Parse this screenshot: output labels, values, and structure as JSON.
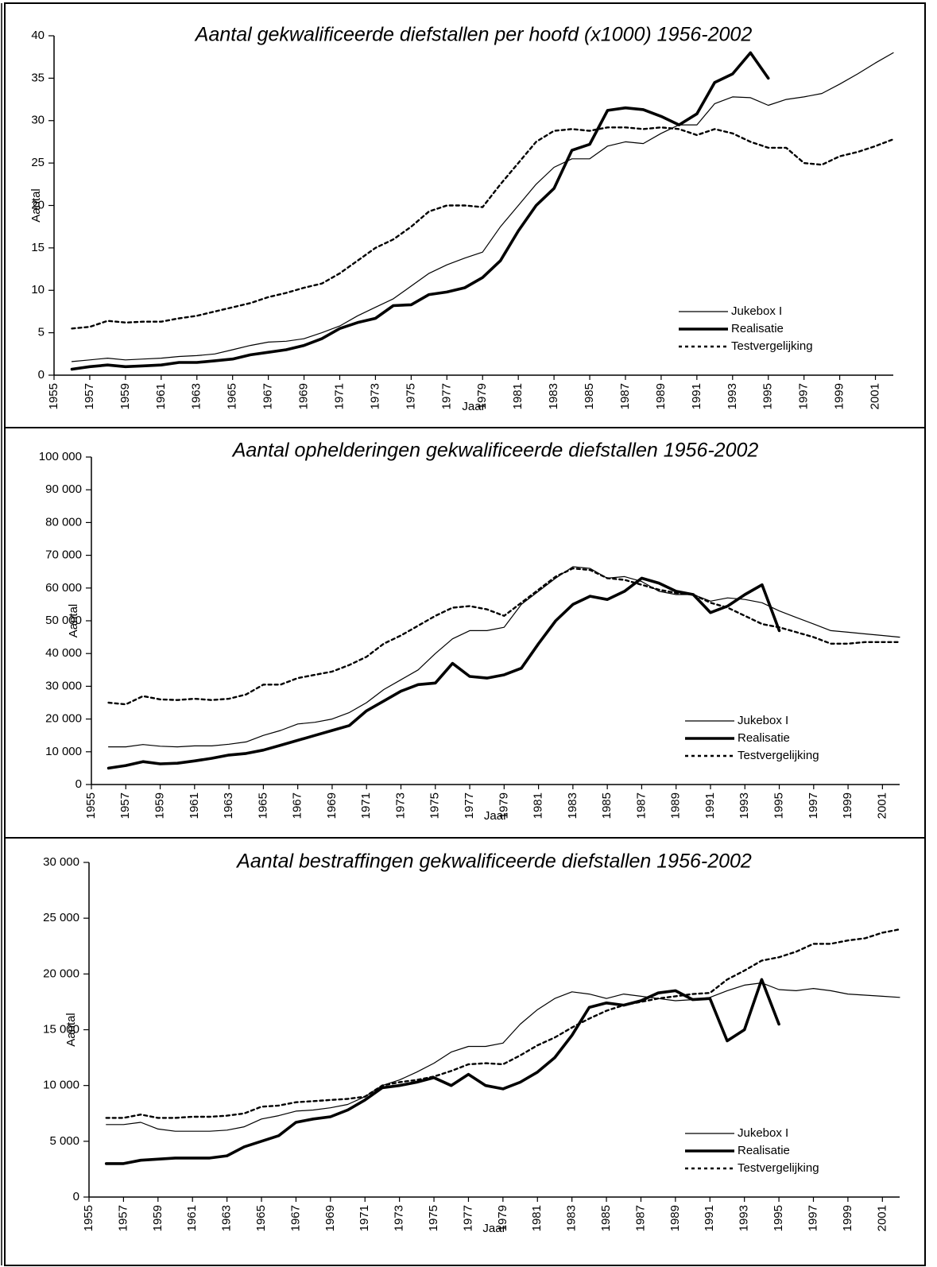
{
  "chart_data": [
    {
      "type": "line",
      "title": "Aantal gekwalificeerde diefstallen per hoofd (x1000) 1956-2002",
      "xlabel": "Jaar",
      "ylabel": "Aantal",
      "x": [
        1956,
        1957,
        1958,
        1959,
        1960,
        1961,
        1962,
        1963,
        1964,
        1965,
        1966,
        1967,
        1968,
        1969,
        1970,
        1971,
        1972,
        1973,
        1974,
        1975,
        1976,
        1977,
        1978,
        1979,
        1980,
        1981,
        1982,
        1983,
        1984,
        1985,
        1986,
        1987,
        1988,
        1989,
        1990,
        1991,
        1992,
        1993,
        1994,
        1995,
        1996,
        1997,
        1998,
        1999,
        2000,
        2001,
        2002
      ],
      "xlim": [
        1955,
        2002
      ],
      "xticks": [
        1955,
        1957,
        1959,
        1961,
        1963,
        1965,
        1967,
        1969,
        1971,
        1973,
        1975,
        1977,
        1979,
        1981,
        1983,
        1985,
        1987,
        1989,
        1991,
        1993,
        1995,
        1997,
        1999,
        2001
      ],
      "ylim": [
        0,
        40
      ],
      "yticks": [
        0,
        5,
        10,
        15,
        20,
        25,
        30,
        35,
        40
      ],
      "legend": "lower right",
      "series": [
        {
          "name": "Jukebox I",
          "color": "#000000",
          "linestyle": "thin",
          "values": [
            1.6,
            1.8,
            2.0,
            1.8,
            1.9,
            2.0,
            2.2,
            2.3,
            2.5,
            3.0,
            3.5,
            3.9,
            4.0,
            4.3,
            5.0,
            5.8,
            7.0,
            8.0,
            9.0,
            10.5,
            12.0,
            13.0,
            13.8,
            14.5,
            17.5,
            20.0,
            22.5,
            24.5,
            25.5,
            25.5,
            27.0,
            27.5,
            27.3,
            28.5,
            29.5,
            29.5,
            32.0,
            32.8,
            32.7,
            31.8,
            32.5,
            32.8,
            33.2,
            34.3,
            35.5,
            36.8,
            38.0
          ]
        },
        {
          "name": "Realisatie",
          "color": "#000000",
          "linestyle": "thick",
          "values": [
            0.7,
            1.0,
            1.2,
            1.0,
            1.1,
            1.2,
            1.5,
            1.5,
            1.7,
            1.9,
            2.4,
            2.7,
            3.0,
            3.5,
            4.3,
            5.5,
            6.2,
            6.7,
            8.2,
            8.3,
            9.5,
            9.8,
            10.3,
            11.5,
            13.5,
            17.0,
            20.0,
            22.0,
            26.5,
            27.2,
            31.2,
            31.5,
            31.3,
            30.5,
            29.5,
            30.8,
            34.5,
            35.5,
            38.0,
            35.0,
            null,
            null,
            null,
            null,
            null,
            null,
            null
          ]
        },
        {
          "name": "Testvergelijking",
          "color": "#000000",
          "linestyle": "dotted",
          "values": [
            5.5,
            5.7,
            6.4,
            6.2,
            6.3,
            6.3,
            6.7,
            7.0,
            7.5,
            8.0,
            8.5,
            9.2,
            9.7,
            10.3,
            10.8,
            12.0,
            13.5,
            15.0,
            16.0,
            17.5,
            19.3,
            20.0,
            20.0,
            19.8,
            22.5,
            25.0,
            27.5,
            28.8,
            29.0,
            28.8,
            29.2,
            29.2,
            29.0,
            29.2,
            29.0,
            28.3,
            29.0,
            28.5,
            27.5,
            26.8,
            26.8,
            25.0,
            24.8,
            25.8,
            26.3,
            27.0,
            27.8
          ]
        }
      ]
    },
    {
      "type": "line",
      "title": "Aantal ophelderingen gekwalificeerde diefstallen 1956-2002",
      "xlabel": "Jaar",
      "ylabel": "Aantal",
      "x": [
        1956,
        1957,
        1958,
        1959,
        1960,
        1961,
        1962,
        1963,
        1964,
        1965,
        1966,
        1967,
        1968,
        1969,
        1970,
        1971,
        1972,
        1973,
        1974,
        1975,
        1976,
        1977,
        1978,
        1979,
        1980,
        1981,
        1982,
        1983,
        1984,
        1985,
        1986,
        1987,
        1988,
        1989,
        1990,
        1991,
        1992,
        1993,
        1994,
        1995,
        1996,
        1997,
        1998,
        1999,
        2000,
        2001,
        2002
      ],
      "xlim": [
        1955,
        2002
      ],
      "xticks": [
        1955,
        1957,
        1959,
        1961,
        1963,
        1965,
        1967,
        1969,
        1971,
        1973,
        1975,
        1977,
        1979,
        1981,
        1983,
        1985,
        1987,
        1989,
        1991,
        1993,
        1995,
        1997,
        1999,
        2001
      ],
      "ylim": [
        0,
        100000
      ],
      "yticks": [
        0,
        {
          "value": 10000,
          "label": "10 000"
        },
        {
          "value": 20000,
          "label": "20 000"
        },
        {
          "value": 30000,
          "label": "30 000"
        },
        {
          "value": 40000,
          "label": "40 000"
        },
        {
          "value": 50000,
          "label": "50 000"
        },
        {
          "value": 60000,
          "label": "60 000"
        },
        {
          "value": 70000,
          "label": "70 000"
        },
        {
          "value": 80000,
          "label": "80 000"
        },
        {
          "value": 90000,
          "label": "90 000"
        },
        {
          "value": 100000,
          "label": "100 000"
        }
      ],
      "legend": "lower right",
      "series": [
        {
          "name": "Jukebox I",
          "color": "#000000",
          "linestyle": "thin",
          "values": [
            11500,
            11500,
            12200,
            11700,
            11500,
            11800,
            11800,
            12300,
            13000,
            15000,
            16500,
            18500,
            19000,
            20000,
            22000,
            25000,
            29000,
            32000,
            35000,
            40000,
            44500,
            47000,
            47000,
            48000,
            55000,
            59000,
            63000,
            66500,
            66000,
            63000,
            63500,
            62000,
            59000,
            58000,
            58000,
            56000,
            57000,
            56500,
            55500,
            53000,
            51000,
            49000,
            47000,
            46500,
            46000,
            45500,
            45000
          ]
        },
        {
          "name": "Realisatie",
          "color": "#000000",
          "linestyle": "thick",
          "values": [
            5000,
            5800,
            7000,
            6300,
            6500,
            7200,
            8000,
            9000,
            9500,
            10500,
            12000,
            13500,
            15000,
            16500,
            18000,
            22500,
            25500,
            28500,
            30500,
            31000,
            37000,
            33000,
            32500,
            33500,
            35500,
            43000,
            50000,
            55000,
            57500,
            56500,
            59000,
            63000,
            61500,
            59000,
            58000,
            52500,
            54500,
            58000,
            61000,
            47000,
            null,
            null,
            null,
            null,
            null,
            null,
            null
          ]
        },
        {
          "name": "Testvergelijking",
          "color": "#000000",
          "linestyle": "dotted",
          "values": [
            25000,
            24500,
            27000,
            26000,
            25800,
            26200,
            25800,
            26200,
            27500,
            30500,
            30500,
            32500,
            33500,
            34500,
            36500,
            39000,
            43000,
            45500,
            48500,
            51500,
            54000,
            54500,
            53500,
            51500,
            55500,
            59500,
            63500,
            66000,
            65500,
            63000,
            62500,
            61000,
            59500,
            58500,
            58000,
            55500,
            54000,
            51500,
            49000,
            48000,
            46500,
            45000,
            43000,
            43000,
            43500,
            43500,
            43500
          ]
        }
      ]
    },
    {
      "type": "line",
      "title": "Aantal bestraffingen gekwalificeerde diefstallen 1956-2002",
      "xlabel": "Jaar",
      "ylabel": "Aantal",
      "x": [
        1956,
        1957,
        1958,
        1959,
        1960,
        1961,
        1962,
        1963,
        1964,
        1965,
        1966,
        1967,
        1968,
        1969,
        1970,
        1971,
        1972,
        1973,
        1974,
        1975,
        1976,
        1977,
        1978,
        1979,
        1980,
        1981,
        1982,
        1983,
        1984,
        1985,
        1986,
        1987,
        1988,
        1989,
        1990,
        1991,
        1992,
        1993,
        1994,
        1995,
        1996,
        1997,
        1998,
        1999,
        2000,
        2001,
        2002
      ],
      "xlim": [
        1955,
        2002
      ],
      "xticks": [
        1955,
        1957,
        1959,
        1961,
        1963,
        1965,
        1967,
        1969,
        1971,
        1973,
        1975,
        1977,
        1979,
        1981,
        1983,
        1985,
        1987,
        1989,
        1991,
        1993,
        1995,
        1997,
        1999,
        2001
      ],
      "ylim": [
        0,
        30000
      ],
      "yticks": [
        0,
        {
          "value": 5000,
          "label": "5 000"
        },
        {
          "value": 10000,
          "label": "10 000"
        },
        {
          "value": 15000,
          "label": "15 000"
        },
        {
          "value": 20000,
          "label": "20 000"
        },
        {
          "value": 25000,
          "label": "25 000"
        },
        {
          "value": 30000,
          "label": "30 000"
        }
      ],
      "legend": "lower right",
      "series": [
        {
          "name": "Jukebox I",
          "color": "#000000",
          "linestyle": "thin",
          "values": [
            6500,
            6500,
            6700,
            6100,
            5900,
            5900,
            5900,
            6000,
            6300,
            7000,
            7300,
            7700,
            7800,
            8000,
            8300,
            9000,
            10000,
            10500,
            11200,
            12000,
            13000,
            13500,
            13500,
            13800,
            15500,
            16800,
            17800,
            18400,
            18200,
            17800,
            18200,
            18000,
            17800,
            17600,
            17700,
            17900,
            18500,
            19000,
            19200,
            18600,
            18500,
            18700,
            18500,
            18200,
            18100,
            18000,
            17900
          ]
        },
        {
          "name": "Realisatie",
          "color": "#000000",
          "linestyle": "thick",
          "values": [
            3000,
            3000,
            3300,
            3400,
            3500,
            3500,
            3500,
            3700,
            4500,
            5000,
            5500,
            6700,
            7000,
            7200,
            7800,
            8700,
            9800,
            10000,
            10300,
            10700,
            10000,
            11000,
            10000,
            9700,
            10300,
            11200,
            12500,
            14500,
            17000,
            17400,
            17200,
            17600,
            18300,
            18500,
            17700,
            17800,
            14000,
            15000,
            19500,
            15500,
            null,
            null,
            null,
            null,
            null,
            null,
            null
          ]
        },
        {
          "name": "Testvergelijking",
          "color": "#000000",
          "linestyle": "dotted",
          "values": [
            7100,
            7100,
            7400,
            7100,
            7100,
            7200,
            7200,
            7300,
            7500,
            8100,
            8200,
            8500,
            8600,
            8700,
            8800,
            9000,
            10000,
            10300,
            10500,
            10800,
            11300,
            11900,
            12000,
            11900,
            12700,
            13600,
            14300,
            15200,
            16000,
            16700,
            17200,
            17500,
            17800,
            18000,
            18200,
            18300,
            19500,
            20300,
            21200,
            21500,
            22000,
            22700,
            22700,
            23000,
            23200,
            23700,
            24000
          ]
        }
      ]
    }
  ]
}
